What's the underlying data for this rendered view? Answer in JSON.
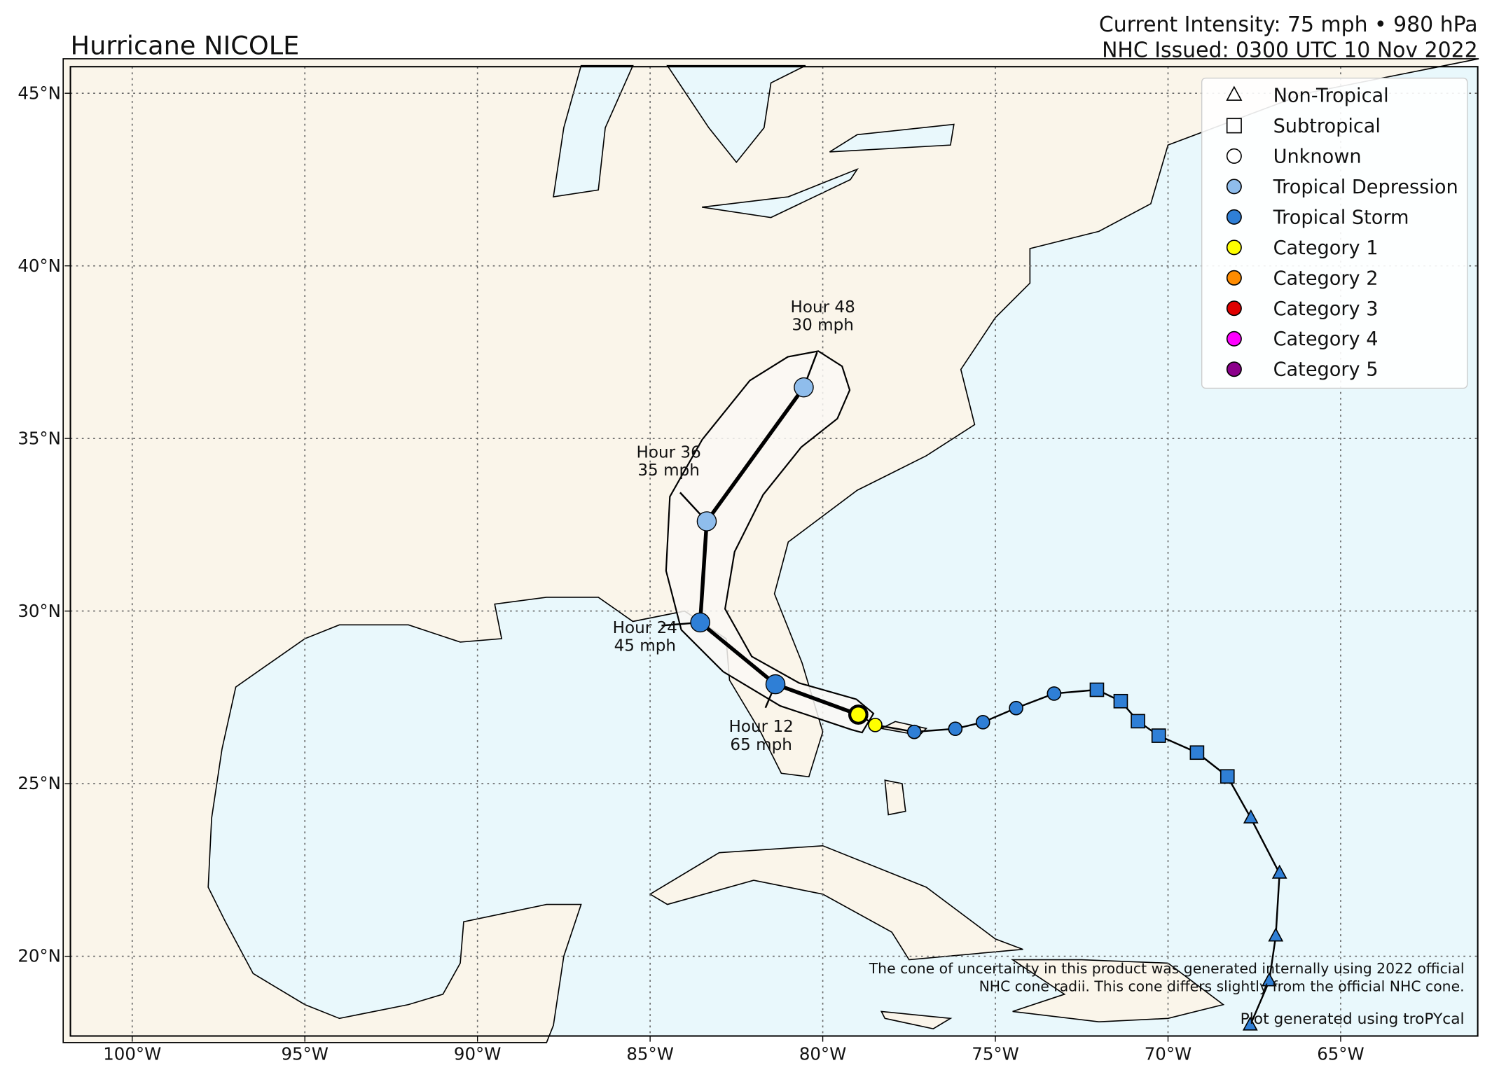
{
  "header": {
    "title": "Hurricane NICOLE",
    "intensity": "Current Intensity: 75 mph • 980 hPa",
    "issued": "NHC Issued: 0300 UTC 10 Nov 2022"
  },
  "map": {
    "xlim": [
      -101.79,
      -61.03
    ],
    "ylim": [
      17.69,
      45.77
    ],
    "xticks": [
      {
        "value": -100,
        "label": "100°W"
      },
      {
        "value": -95,
        "label": "95°W"
      },
      {
        "value": -90,
        "label": "90°W"
      },
      {
        "value": -85,
        "label": "85°W"
      },
      {
        "value": -80,
        "label": "80°W"
      },
      {
        "value": -75,
        "label": "75°W"
      },
      {
        "value": -70,
        "label": "70°W"
      },
      {
        "value": -65,
        "label": "65°W"
      }
    ],
    "yticks": [
      {
        "value": 20,
        "label": "20°N"
      },
      {
        "value": 25,
        "label": "25°N"
      },
      {
        "value": 30,
        "label": "30°N"
      },
      {
        "value": 35,
        "label": "35°N"
      },
      {
        "value": 40,
        "label": "40°N"
      },
      {
        "value": 45,
        "label": "45°N"
      }
    ],
    "grid": true
  },
  "legend": [
    {
      "name": "Non-Tropical",
      "shape": "triangle",
      "color": "#ffffff"
    },
    {
      "name": "Subtropical",
      "shape": "square",
      "color": "#ffffff"
    },
    {
      "name": "Unknown",
      "shape": "circle",
      "color": "#ffffff"
    },
    {
      "name": "Tropical Depression",
      "shape": "circle",
      "color": "#8fbdec"
    },
    {
      "name": "Tropical Storm",
      "shape": "circle",
      "color": "#2f7fd6"
    },
    {
      "name": "Category 1",
      "shape": "circle",
      "color": "#ffff00"
    },
    {
      "name": "Category 2",
      "shape": "circle",
      "color": "#ff8c00"
    },
    {
      "name": "Category 3",
      "shape": "circle",
      "color": "#e00000"
    },
    {
      "name": "Category 4",
      "shape": "circle",
      "color": "#ff00ff"
    },
    {
      "name": "Category 5",
      "shape": "circle",
      "color": "#8b008b"
    }
  ],
  "past_track": {
    "lon": [
      -67.62,
      -67.07,
      -66.88,
      -66.77,
      -67.6,
      -68.28,
      -69.16,
      -70.27,
      -70.87,
      -71.37,
      -72.06,
      -73.3,
      -74.4,
      -75.36,
      -76.16,
      -77.35,
      -78.48,
      -78.97
    ],
    "lat": [
      18.0,
      19.28,
      20.58,
      22.4,
      24.0,
      25.21,
      25.9,
      26.39,
      26.81,
      27.39,
      27.72,
      27.61,
      27.19,
      26.78,
      26.59,
      26.5,
      26.7,
      27.0
    ],
    "shape": [
      "triangle",
      "triangle",
      "triangle",
      "triangle",
      "triangle",
      "square",
      "square",
      "square",
      "square",
      "square",
      "square",
      "circle",
      "circle",
      "circle",
      "circle",
      "circle",
      "circle",
      "circle"
    ],
    "color": [
      "#2f7fd6",
      "#2f7fd6",
      "#2f7fd6",
      "#2f7fd6",
      "#2f7fd6",
      "#2f7fd6",
      "#2f7fd6",
      "#2f7fd6",
      "#2f7fd6",
      "#2f7fd6",
      "#2f7fd6",
      "#2f7fd6",
      "#2f7fd6",
      "#2f7fd6",
      "#2f7fd6",
      "#2f7fd6",
      "#ffff00",
      "#ffff00"
    ]
  },
  "forecast": {
    "lon": [
      -78.97,
      -81.37,
      -83.55,
      -83.36,
      -80.55
    ],
    "lat": [
      27.0,
      27.88,
      29.67,
      32.6,
      36.48
    ],
    "color": [
      "#ffff00",
      "#2f7fd6",
      "#2f7fd6",
      "#8fbdec",
      "#8fbdec"
    ],
    "labels": [
      null,
      [
        "Hour 12",
        "65 mph"
      ],
      [
        "Hour 24",
        "45 mph"
      ],
      [
        "Hour 36",
        "35 mph"
      ],
      [
        "Hour 48",
        "30 mph"
      ]
    ]
  },
  "notes": {
    "cone": [
      "The cone of uncertainty in this product was generated internally using 2022 official",
      "NHC cone radii. This cone differs slightly from the official NHC cone."
    ],
    "credit": "Plot generated using troPYcal"
  }
}
